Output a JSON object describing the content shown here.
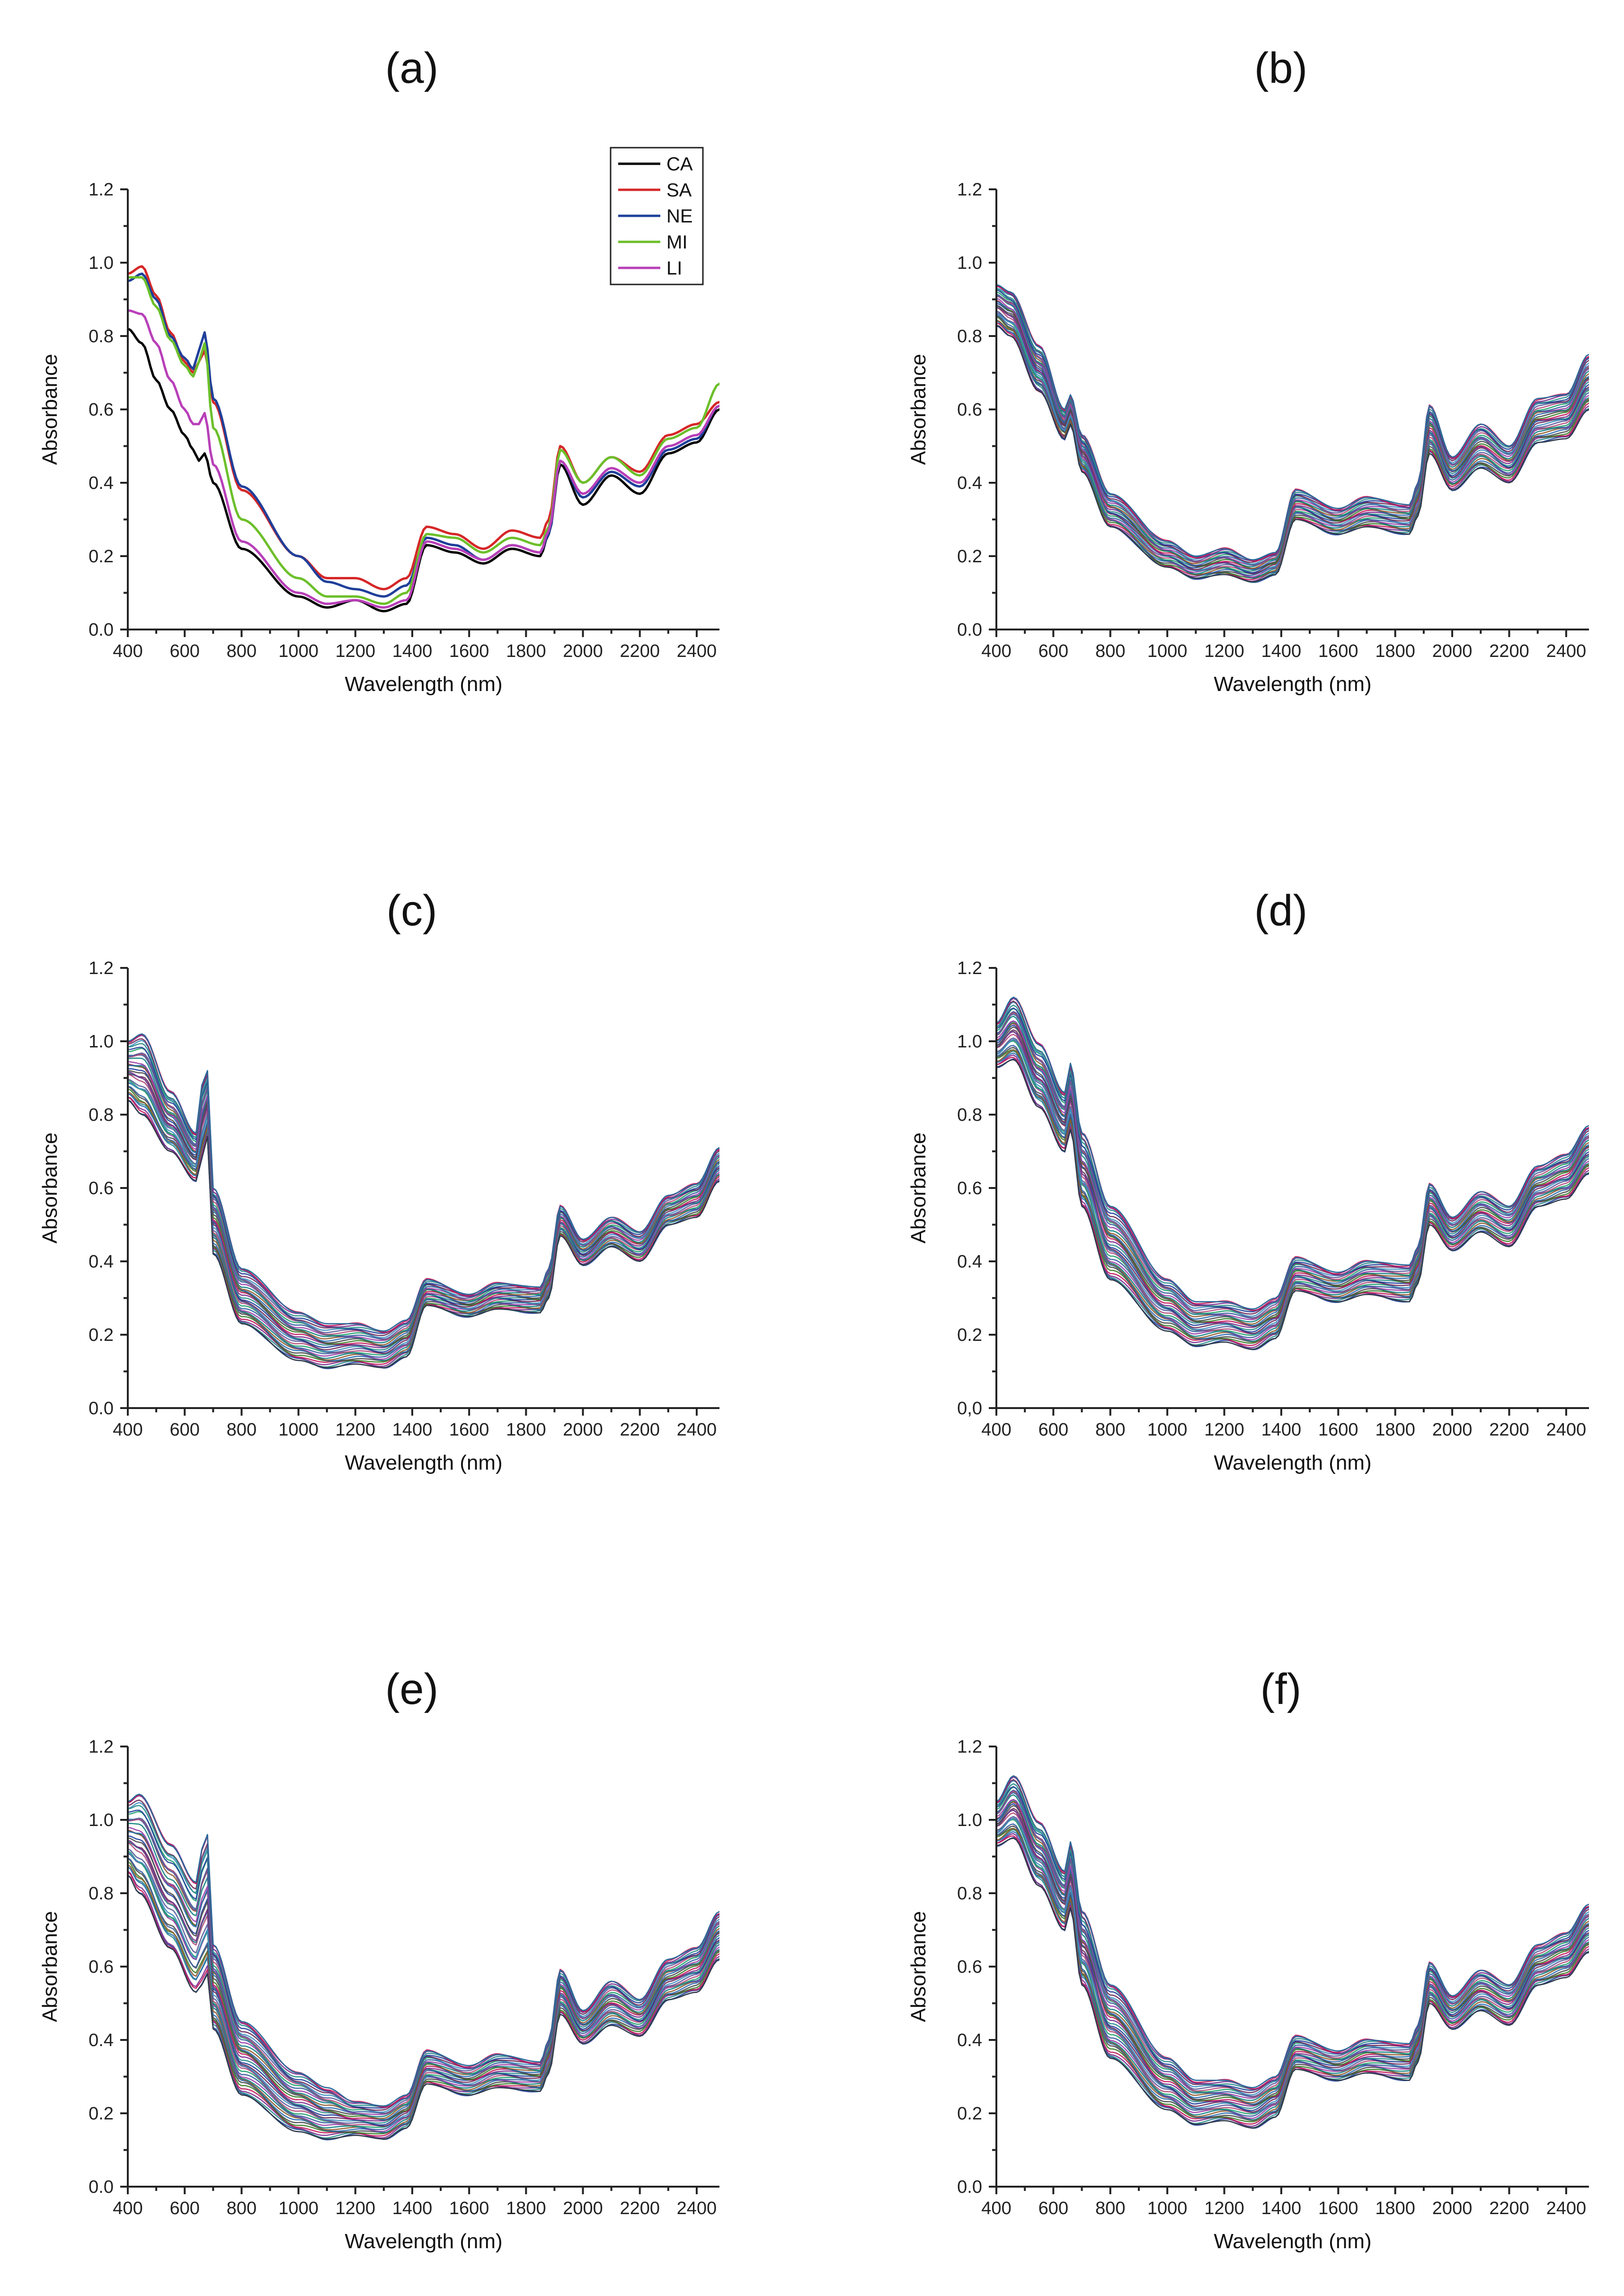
{
  "figure": {
    "layout": "3 rows x 2 columns"
  },
  "chart_data": [
    {
      "panel": "(a)",
      "type": "line",
      "xlabel": "Wavelength (nm)",
      "ylabel": "Absorbance",
      "xlim": [
        400,
        2480
      ],
      "ylim": [
        0.0,
        1.2
      ],
      "xticks": [
        "400",
        "600",
        "800",
        "1000",
        "1200",
        "1400",
        "1600",
        "1800",
        "2000",
        "2200",
        "2400"
      ],
      "yticks": [
        "0.0",
        "0.2",
        "0.4",
        "0.6",
        "0.8",
        "1.0",
        "1.2"
      ],
      "legend": {
        "position": "top-right",
        "entries": [
          "CA",
          "SA",
          "NE",
          "MI",
          "LI"
        ]
      },
      "series": [
        {
          "name": "CA",
          "color": "#000000",
          "x": [
            400,
            450,
            500,
            550,
            600,
            630,
            650,
            670,
            700,
            800,
            1000,
            1100,
            1200,
            1300,
            1380,
            1450,
            1550,
            1650,
            1750,
            1850,
            1880,
            1920,
            2000,
            2100,
            2200,
            2300,
            2400,
            2480
          ],
          "y": [
            0.82,
            0.78,
            0.68,
            0.6,
            0.53,
            0.49,
            0.46,
            0.48,
            0.4,
            0.22,
            0.09,
            0.06,
            0.08,
            0.05,
            0.07,
            0.23,
            0.21,
            0.18,
            0.22,
            0.2,
            0.26,
            0.45,
            0.34,
            0.42,
            0.37,
            0.48,
            0.51,
            0.6
          ]
        },
        {
          "name": "SA",
          "color": "#d62728",
          "x": [
            400,
            450,
            500,
            550,
            600,
            630,
            650,
            670,
            700,
            800,
            1000,
            1100,
            1200,
            1300,
            1380,
            1450,
            1550,
            1650,
            1750,
            1850,
            1880,
            1920,
            2000,
            2100,
            2200,
            2300,
            2400,
            2480
          ],
          "y": [
            0.97,
            0.99,
            0.91,
            0.81,
            0.73,
            0.7,
            0.73,
            0.76,
            0.62,
            0.38,
            0.2,
            0.14,
            0.14,
            0.11,
            0.14,
            0.28,
            0.26,
            0.22,
            0.27,
            0.25,
            0.3,
            0.5,
            0.4,
            0.47,
            0.43,
            0.53,
            0.56,
            0.62
          ]
        },
        {
          "name": "NE",
          "color": "#1f3f9a",
          "x": [
            400,
            450,
            500,
            550,
            600,
            630,
            650,
            670,
            700,
            800,
            1000,
            1100,
            1200,
            1300,
            1380,
            1450,
            1550,
            1650,
            1750,
            1850,
            1880,
            1920,
            2000,
            2100,
            2200,
            2300,
            2400,
            2480
          ],
          "y": [
            0.95,
            0.97,
            0.9,
            0.8,
            0.74,
            0.71,
            0.76,
            0.81,
            0.63,
            0.39,
            0.2,
            0.13,
            0.11,
            0.09,
            0.12,
            0.25,
            0.23,
            0.19,
            0.23,
            0.21,
            0.26,
            0.46,
            0.36,
            0.43,
            0.39,
            0.49,
            0.52,
            0.61
          ]
        },
        {
          "name": "MI",
          "color": "#6cbf2a",
          "x": [
            400,
            450,
            500,
            550,
            600,
            630,
            650,
            670,
            700,
            800,
            1000,
            1100,
            1200,
            1300,
            1380,
            1450,
            1550,
            1650,
            1750,
            1850,
            1880,
            1920,
            2000,
            2100,
            2200,
            2300,
            2400,
            2480
          ],
          "y": [
            0.96,
            0.96,
            0.88,
            0.79,
            0.72,
            0.69,
            0.73,
            0.78,
            0.55,
            0.3,
            0.14,
            0.09,
            0.09,
            0.07,
            0.1,
            0.26,
            0.25,
            0.21,
            0.25,
            0.23,
            0.28,
            0.49,
            0.4,
            0.47,
            0.42,
            0.52,
            0.55,
            0.67
          ]
        },
        {
          "name": "LI",
          "color": "#b83fb8",
          "x": [
            400,
            450,
            500,
            550,
            600,
            630,
            650,
            670,
            700,
            800,
            1000,
            1100,
            1200,
            1300,
            1380,
            1450,
            1550,
            1650,
            1750,
            1850,
            1880,
            1920,
            2000,
            2100,
            2200,
            2300,
            2400,
            2480
          ],
          "y": [
            0.87,
            0.86,
            0.78,
            0.68,
            0.6,
            0.56,
            0.56,
            0.59,
            0.45,
            0.24,
            0.1,
            0.07,
            0.08,
            0.06,
            0.08,
            0.24,
            0.22,
            0.19,
            0.23,
            0.21,
            0.27,
            0.46,
            0.37,
            0.44,
            0.4,
            0.5,
            0.53,
            0.61
          ]
        }
      ]
    },
    {
      "panel": "(b)",
      "type": "line",
      "xlabel": "Wavelength (nm)",
      "ylabel": "Absorbance",
      "xlim": [
        400,
        2480
      ],
      "ylim": [
        0.0,
        1.2
      ],
      "xticks": [
        "400",
        "600",
        "800",
        "1000",
        "1200",
        "1400",
        "1600",
        "1800",
        "2000",
        "2200",
        "2400"
      ],
      "yticks": [
        "0.0",
        "0.2",
        "0.4",
        "0.6",
        "0.8",
        "1.0",
        "1.2"
      ],
      "series": [
        {
          "name": "upper envelope",
          "x": [
            400,
            450,
            550,
            640,
            660,
            700,
            800,
            1000,
            1100,
            1200,
            1300,
            1380,
            1450,
            1600,
            1700,
            1850,
            1880,
            1920,
            2000,
            2100,
            2200,
            2300,
            2400,
            2480
          ],
          "y": [
            0.94,
            0.92,
            0.77,
            0.6,
            0.64,
            0.53,
            0.37,
            0.24,
            0.2,
            0.22,
            0.19,
            0.21,
            0.38,
            0.33,
            0.36,
            0.34,
            0.4,
            0.61,
            0.47,
            0.56,
            0.5,
            0.63,
            0.64,
            0.75
          ]
        },
        {
          "name": "lower envelope",
          "x": [
            400,
            450,
            550,
            640,
            660,
            700,
            800,
            1000,
            1100,
            1200,
            1300,
            1380,
            1450,
            1600,
            1700,
            1850,
            1880,
            1920,
            2000,
            2100,
            2200,
            2300,
            2400,
            2480
          ],
          "y": [
            0.83,
            0.8,
            0.65,
            0.52,
            0.56,
            0.43,
            0.28,
            0.17,
            0.14,
            0.15,
            0.13,
            0.15,
            0.3,
            0.26,
            0.28,
            0.26,
            0.31,
            0.48,
            0.38,
            0.44,
            0.4,
            0.51,
            0.52,
            0.6
          ]
        }
      ]
    },
    {
      "panel": "(c)",
      "type": "line",
      "xlabel": "Wavelength (nm)",
      "ylabel": "Absorbance",
      "xlim": [
        400,
        2480
      ],
      "ylim": [
        0.0,
        1.2
      ],
      "xticks": [
        "400",
        "600",
        "800",
        "1000",
        "1200",
        "1400",
        "1600",
        "1800",
        "2000",
        "2200",
        "2400"
      ],
      "yticks": [
        "0.0",
        "0.2",
        "0.4",
        "0.6",
        "0.8",
        "1.0",
        "1.2"
      ],
      "series": [
        {
          "name": "upper envelope",
          "x": [
            400,
            450,
            550,
            640,
            660,
            680,
            700,
            800,
            1000,
            1100,
            1200,
            1300,
            1380,
            1450,
            1600,
            1700,
            1850,
            1880,
            1920,
            2000,
            2100,
            2200,
            2300,
            2400,
            2480
          ],
          "y": [
            1.0,
            1.02,
            0.86,
            0.75,
            0.88,
            0.92,
            0.6,
            0.38,
            0.26,
            0.23,
            0.23,
            0.21,
            0.24,
            0.35,
            0.31,
            0.34,
            0.33,
            0.38,
            0.55,
            0.46,
            0.52,
            0.48,
            0.58,
            0.61,
            0.71
          ]
        },
        {
          "name": "lower envelope",
          "x": [
            400,
            450,
            550,
            640,
            660,
            680,
            700,
            800,
            1000,
            1100,
            1200,
            1300,
            1380,
            1450,
            1600,
            1700,
            1850,
            1880,
            1920,
            2000,
            2100,
            2200,
            2300,
            2400,
            2480
          ],
          "y": [
            0.84,
            0.8,
            0.7,
            0.62,
            0.68,
            0.74,
            0.42,
            0.23,
            0.13,
            0.11,
            0.12,
            0.11,
            0.14,
            0.28,
            0.25,
            0.27,
            0.26,
            0.3,
            0.47,
            0.39,
            0.44,
            0.4,
            0.5,
            0.52,
            0.62
          ]
        }
      ]
    },
    {
      "panel": "(d)",
      "type": "line",
      "xlabel": "Wavelength (nm)",
      "ylabel": "Absorbance",
      "xlim": [
        400,
        2480
      ],
      "ylim": [
        0.0,
        1.2
      ],
      "xticks": [
        "400",
        "600",
        "800",
        "1000",
        "1200",
        "1400",
        "1600",
        "1800",
        "2000",
        "2200",
        "2400"
      ],
      "yticks": [
        "0,0",
        "0.2",
        "0.4",
        "0.6",
        "0.8",
        "1.0",
        "1.2"
      ],
      "series": [
        {
          "name": "upper envelope",
          "x": [
            400,
            460,
            550,
            640,
            660,
            700,
            800,
            1000,
            1100,
            1200,
            1300,
            1380,
            1450,
            1600,
            1700,
            1850,
            1880,
            1920,
            2000,
            2100,
            2200,
            2300,
            2400,
            2480
          ],
          "y": [
            1.05,
            1.12,
            0.99,
            0.86,
            0.94,
            0.75,
            0.55,
            0.35,
            0.29,
            0.29,
            0.27,
            0.3,
            0.41,
            0.37,
            0.4,
            0.39,
            0.44,
            0.61,
            0.52,
            0.59,
            0.55,
            0.66,
            0.69,
            0.77
          ]
        },
        {
          "name": "lower envelope",
          "x": [
            400,
            460,
            550,
            640,
            660,
            700,
            800,
            1000,
            1100,
            1200,
            1300,
            1380,
            1450,
            1600,
            1700,
            1850,
            1880,
            1920,
            2000,
            2100,
            2200,
            2300,
            2400,
            2480
          ],
          "y": [
            0.93,
            0.95,
            0.82,
            0.7,
            0.76,
            0.55,
            0.35,
            0.21,
            0.17,
            0.18,
            0.16,
            0.19,
            0.32,
            0.29,
            0.31,
            0.29,
            0.34,
            0.5,
            0.43,
            0.48,
            0.44,
            0.55,
            0.57,
            0.64
          ]
        }
      ]
    },
    {
      "panel": "(e)",
      "type": "line",
      "xlabel": "Wavelength (nm)",
      "ylabel": "Absorbance",
      "xlim": [
        400,
        2480
      ],
      "ylim": [
        0.0,
        1.2
      ],
      "xticks": [
        "400",
        "600",
        "800",
        "1000",
        "1200",
        "1400",
        "1600",
        "1800",
        "2000",
        "2200",
        "2400"
      ],
      "yticks": [
        "0.0",
        "0.2",
        "0.4",
        "0.6",
        "0.8",
        "1.0",
        "1.2"
      ],
      "series": [
        {
          "name": "upper envelope",
          "x": [
            400,
            440,
            550,
            640,
            660,
            680,
            700,
            800,
            1000,
            1100,
            1200,
            1300,
            1380,
            1450,
            1600,
            1700,
            1850,
            1880,
            1920,
            2000,
            2100,
            2200,
            2300,
            2400,
            2480
          ],
          "y": [
            1.05,
            1.07,
            0.93,
            0.83,
            0.92,
            0.96,
            0.66,
            0.45,
            0.31,
            0.27,
            0.23,
            0.22,
            0.25,
            0.37,
            0.33,
            0.36,
            0.34,
            0.4,
            0.59,
            0.48,
            0.56,
            0.51,
            0.62,
            0.65,
            0.75
          ]
        },
        {
          "name": "lower envelope",
          "x": [
            400,
            440,
            550,
            640,
            660,
            680,
            700,
            800,
            1000,
            1100,
            1200,
            1300,
            1380,
            1450,
            1600,
            1700,
            1850,
            1880,
            1920,
            2000,
            2100,
            2200,
            2300,
            2400,
            2480
          ],
          "y": [
            0.85,
            0.8,
            0.65,
            0.53,
            0.55,
            0.58,
            0.43,
            0.25,
            0.15,
            0.13,
            0.14,
            0.13,
            0.16,
            0.28,
            0.25,
            0.27,
            0.26,
            0.31,
            0.47,
            0.39,
            0.44,
            0.41,
            0.51,
            0.53,
            0.62
          ]
        }
      ]
    },
    {
      "panel": "(f)",
      "type": "line",
      "xlabel": "Wavelength (nm)",
      "ylabel": "Absorbance",
      "xlim": [
        400,
        2480
      ],
      "ylim": [
        0.0,
        1.2
      ],
      "xticks": [
        "400",
        "600",
        "800",
        "1000",
        "1200",
        "1400",
        "1600",
        "1800",
        "2000",
        "2200",
        "2400"
      ],
      "yticks": [
        "0.0",
        "0.2",
        "0.4",
        "0.6",
        "0.8",
        "1.0",
        "1.2"
      ],
      "series": [
        {
          "name": "upper envelope",
          "x": [
            400,
            460,
            550,
            640,
            660,
            700,
            800,
            1000,
            1100,
            1200,
            1300,
            1380,
            1450,
            1600,
            1700,
            1850,
            1880,
            1920,
            2000,
            2100,
            2200,
            2300,
            2400,
            2480
          ],
          "y": [
            1.05,
            1.12,
            0.99,
            0.86,
            0.94,
            0.75,
            0.55,
            0.35,
            0.29,
            0.29,
            0.27,
            0.3,
            0.41,
            0.37,
            0.4,
            0.39,
            0.44,
            0.61,
            0.52,
            0.59,
            0.55,
            0.66,
            0.69,
            0.77
          ]
        },
        {
          "name": "lower envelope",
          "x": [
            400,
            460,
            550,
            640,
            660,
            700,
            800,
            1000,
            1100,
            1200,
            1300,
            1380,
            1450,
            1600,
            1700,
            1850,
            1880,
            1920,
            2000,
            2100,
            2200,
            2300,
            2400,
            2480
          ],
          "y": [
            0.93,
            0.95,
            0.82,
            0.7,
            0.76,
            0.55,
            0.35,
            0.21,
            0.17,
            0.18,
            0.16,
            0.19,
            0.32,
            0.29,
            0.31,
            0.29,
            0.34,
            0.5,
            0.43,
            0.48,
            0.44,
            0.55,
            0.57,
            0.64
          ]
        }
      ]
    }
  ],
  "colors": {
    "palette": [
      "#1f3f9a",
      "#2a8c8c",
      "#7a2e8e",
      "#c2185b",
      "#3a7d2a",
      "#4a4a4a",
      "#2b6cb0",
      "#8e5a2e",
      "#0f7f7f",
      "#9a3fa8",
      "#355e9e",
      "#1f9e6e",
      "#b04a7a",
      "#5a5a9a",
      "#3f8fbf",
      "#6a2a5a"
    ]
  }
}
